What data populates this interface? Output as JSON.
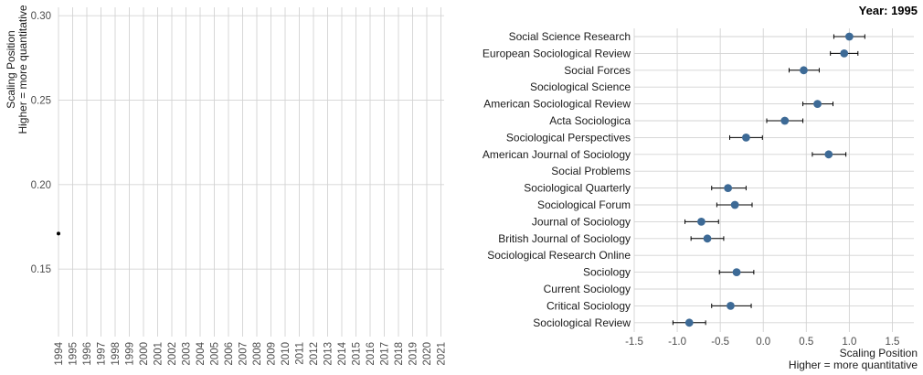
{
  "chart_data": [
    {
      "type": "scatter",
      "title": "",
      "ylabel": "Scaling Position",
      "ylabel2": "Higher = more quantitative",
      "xlabel": "",
      "x_categories": [
        "1994",
        "1995",
        "1996",
        "1997",
        "1998",
        "1999",
        "2000",
        "2001",
        "2002",
        "2003",
        "2004",
        "2005",
        "2006",
        "2007",
        "2008",
        "2009",
        "2010",
        "2011",
        "2012",
        "2013",
        "2014",
        "2015",
        "2016",
        "2017",
        "2018",
        "2019",
        "2020",
        "2021"
      ],
      "ylim": [
        0.11,
        0.305
      ],
      "y_ticks": [
        0.15,
        0.2,
        0.25,
        0.3
      ],
      "y_tick_labels": [
        "0.15",
        "0.20",
        "0.25",
        "0.30"
      ],
      "points": [
        {
          "x": "1994",
          "y": 0.171
        }
      ],
      "grid": true
    },
    {
      "type": "scatter",
      "subtitle": "Year: 1995",
      "xlabel": "Scaling Position",
      "xlabel2": "Higher = more quantitative",
      "xlim": [
        -1.5,
        1.75
      ],
      "x_ticks": [
        -1.5,
        -1.0,
        -0.5,
        0.0,
        0.5,
        1.0,
        1.5
      ],
      "x_tick_labels": [
        "-1.5",
        "-1.0",
        "-0.5",
        "0.0",
        "0.5",
        "1.0",
        "1.5"
      ],
      "point_color": "#3d6a96",
      "grid": true,
      "journals": [
        {
          "name": "Social Science Research",
          "value": 1.0,
          "lo": 0.82,
          "hi": 1.18
        },
        {
          "name": "European Sociological Review",
          "value": 0.94,
          "lo": 0.78,
          "hi": 1.1
        },
        {
          "name": "Social Forces",
          "value": 0.47,
          "lo": 0.3,
          "hi": 0.65
        },
        {
          "name": "Sociological Science",
          "value": null,
          "lo": null,
          "hi": null
        },
        {
          "name": "American Sociological Review",
          "value": 0.63,
          "lo": 0.46,
          "hi": 0.81
        },
        {
          "name": "Acta Sociologica",
          "value": 0.25,
          "lo": 0.04,
          "hi": 0.46
        },
        {
          "name": "Sociological Perspectives",
          "value": -0.2,
          "lo": -0.39,
          "hi": -0.01
        },
        {
          "name": "American Journal of Sociology",
          "value": 0.76,
          "lo": 0.57,
          "hi": 0.96
        },
        {
          "name": "Social Problems",
          "value": null,
          "lo": null,
          "hi": null
        },
        {
          "name": "Sociological Quarterly",
          "value": -0.41,
          "lo": -0.6,
          "hi": -0.2
        },
        {
          "name": "Sociological Forum",
          "value": -0.33,
          "lo": -0.54,
          "hi": -0.13
        },
        {
          "name": "Journal of Sociology",
          "value": -0.72,
          "lo": -0.91,
          "hi": -0.52
        },
        {
          "name": "British Journal of Sociology",
          "value": -0.65,
          "lo": -0.84,
          "hi": -0.46
        },
        {
          "name": "Sociological Research Online",
          "value": null,
          "lo": null,
          "hi": null
        },
        {
          "name": "Sociology",
          "value": -0.31,
          "lo": -0.51,
          "hi": -0.11
        },
        {
          "name": "Current Sociology",
          "value": null,
          "lo": null,
          "hi": null
        },
        {
          "name": "Critical Sociology",
          "value": -0.38,
          "lo": -0.6,
          "hi": -0.14
        },
        {
          "name": "Sociological Review",
          "value": -0.86,
          "lo": -1.05,
          "hi": -0.67
        }
      ]
    }
  ]
}
